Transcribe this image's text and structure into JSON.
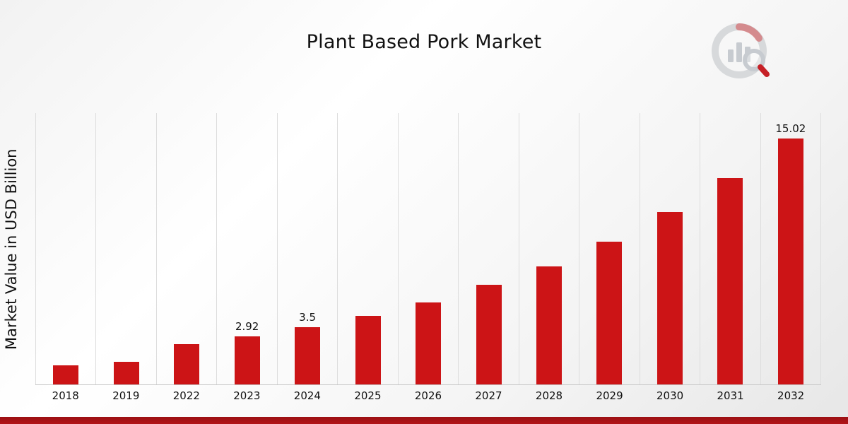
{
  "page": {
    "accent_bar_color": "#b11418"
  },
  "logo": {
    "name": "analytics-magnifier-logo",
    "ring_color": "#d7d9db",
    "bar_color": "#c7cbd0",
    "accent_color": "#c62026"
  },
  "chart_data": {
    "type": "bar",
    "title": "Plant Based Pork Market",
    "ylabel": "Market Value in USD Billion",
    "xlabel": "",
    "categories": [
      "2018",
      "2019",
      "2022",
      "2023",
      "2024",
      "2025",
      "2026",
      "2027",
      "2028",
      "2029",
      "2030",
      "2031",
      "2032"
    ],
    "values": [
      1.15,
      1.4,
      2.45,
      2.92,
      3.5,
      4.2,
      5.0,
      6.1,
      7.2,
      8.7,
      10.5,
      12.6,
      15.02
    ],
    "value_labels": {
      "2023": "2.92",
      "2024": "3.5",
      "2032": "15.02"
    },
    "bar_color": "#cc1416",
    "ylim": [
      0,
      16.6
    ],
    "grid": "vertical",
    "legend": "none"
  }
}
